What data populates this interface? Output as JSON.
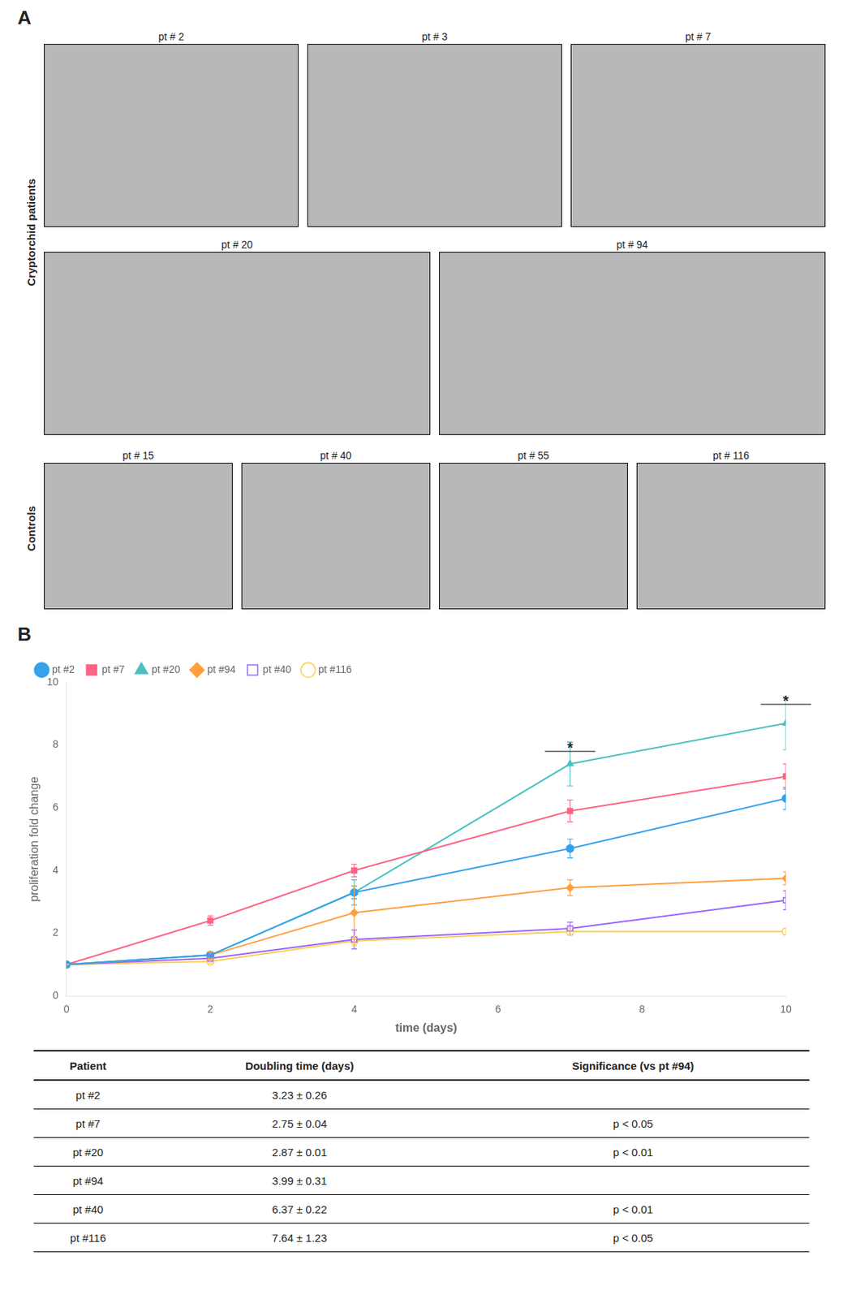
{
  "chart_data": {
    "type": "line",
    "x_label": "time (days)",
    "y_label": "proliferation fold change",
    "x": [
      0,
      2,
      4,
      7,
      10
    ],
    "xlim": [
      0,
      10
    ],
    "ylim": [
      0,
      10
    ],
    "xticks": [
      0,
      2,
      4,
      6,
      8,
      10
    ],
    "yticks": [
      0,
      2,
      4,
      6,
      8,
      10
    ],
    "grid": false,
    "legend": "upper left",
    "series": [
      {
        "name": "pt #2",
        "values": [
          1.0,
          1.3,
          3.3,
          4.7,
          6.3
        ],
        "yerr": [
          0.0,
          0.1,
          0.2,
          0.3,
          0.35
        ],
        "marker": "circle"
      },
      {
        "name": "pt #7",
        "values": [
          1.0,
          2.4,
          4.0,
          5.9,
          7.0
        ],
        "yerr": [
          0.0,
          0.15,
          0.2,
          0.35,
          0.4
        ],
        "marker": "square"
      },
      {
        "name": "pt #20",
        "values": [
          1.0,
          1.3,
          3.3,
          7.4,
          8.7
        ],
        "yerr": [
          0.0,
          0.1,
          0.4,
          0.7,
          0.85
        ],
        "marker": "triangle"
      },
      {
        "name": "pt #94",
        "values": [
          1.0,
          1.3,
          2.65,
          3.45,
          3.75
        ],
        "yerr": [
          0.0,
          0.1,
          0.85,
          0.25,
          0.2
        ],
        "marker": "diamond"
      },
      {
        "name": "pt #40",
        "values": [
          1.0,
          1.2,
          1.8,
          2.15,
          3.05
        ],
        "yerr": [
          0.0,
          0.1,
          0.3,
          0.2,
          0.3
        ],
        "marker": "open_square"
      },
      {
        "name": "pt #116",
        "values": [
          1.0,
          1.1,
          1.75,
          2.05,
          2.05
        ],
        "yerr": [
          0.0,
          0.05,
          0.15,
          0.1,
          0.1
        ],
        "marker": "open_circle"
      }
    ],
    "annotations": [
      {
        "text": "*",
        "x": 7.0,
        "y": 7.9,
        "line_y": 7.8,
        "line_x": [
          6.65,
          7.35
        ]
      },
      {
        "text": "*",
        "x": 10.0,
        "y": 9.4,
        "line_y": 9.3,
        "line_x": [
          9.65,
          10.35
        ]
      }
    ]
  },
  "panel_labels": [
    "A",
    "B"
  ],
  "images": {
    "color": "#b8b8b8",
    "groups": [
      {
        "label": "Cryptorchid patients",
        "rows": [
          [
            "pt # 2",
            "pt # 3",
            "pt # 7"
          ],
          [
            "pt # 20",
            "pt # 94"
          ]
        ]
      },
      {
        "label": "Controls",
        "rows": [
          [
            "pt # 15",
            "pt # 40",
            "pt # 55",
            "pt # 116"
          ]
        ]
      }
    ]
  },
  "table": {
    "headers": [
      "Patient",
      "Doubling time (days)",
      "Significance (vs pt #94)"
    ],
    "rows": [
      [
        "pt #2",
        "3.23 ± 0.26",
        null
      ],
      [
        "pt #7",
        "2.75 ± 0.04",
        "p < 0.05"
      ],
      [
        "pt #20",
        "2.87 ± 0.01",
        "p < 0.01"
      ],
      [
        "pt #94",
        "3.99 ± 0.31",
        null
      ],
      [
        "pt #40",
        "6.37 ± 0.22",
        "p < 0.01"
      ],
      [
        "pt #116",
        "7.64 ± 1.23",
        "p < 0.05"
      ]
    ]
  }
}
